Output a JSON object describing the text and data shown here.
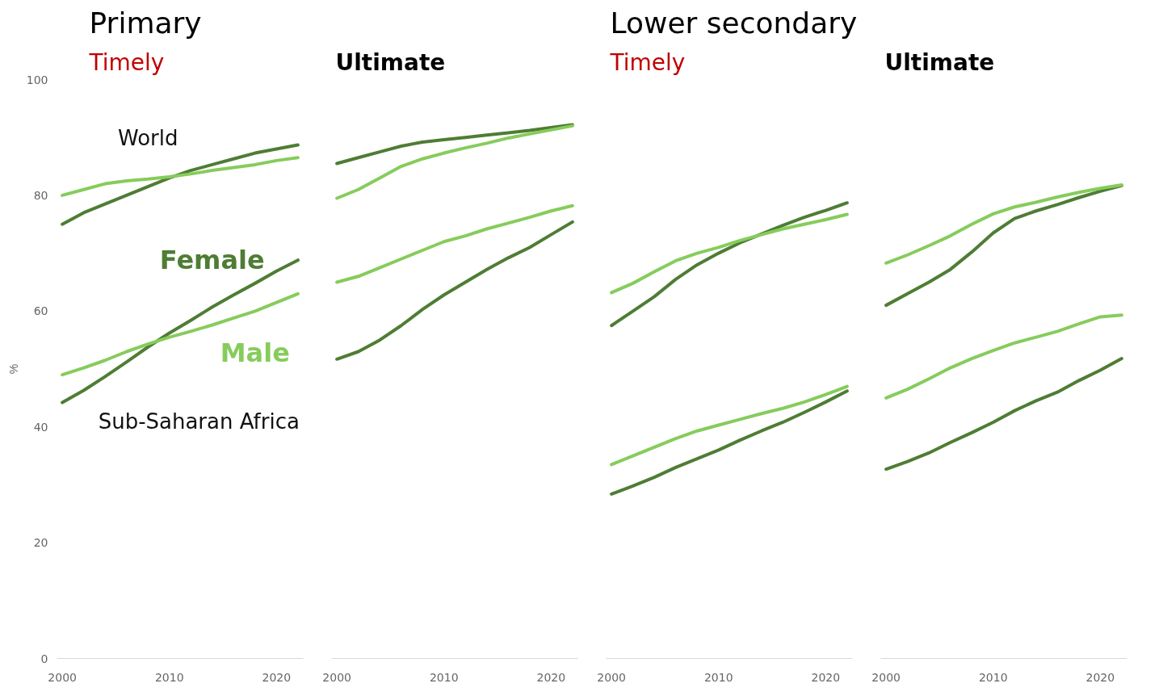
{
  "chart_data": [
    {
      "type": "line",
      "title": "Primary",
      "subtitle": "Timely",
      "ylabel": "%",
      "x": [
        2000,
        2002,
        2004,
        2006,
        2008,
        2010,
        2012,
        2014,
        2016,
        2018,
        2020,
        2022
      ],
      "xlim": [
        1999.5,
        2022.5
      ],
      "xticks": [
        2000,
        2010,
        2020
      ],
      "ylim": [
        0,
        100
      ],
      "yticks": [
        0,
        20,
        40,
        60,
        80,
        100
      ],
      "series": [
        {
          "color": "#4e7d34",
          "values": [
            75,
            77,
            78.5,
            80,
            81.5,
            83,
            84.3,
            85.3,
            86.3,
            87.3,
            88,
            88.7
          ]
        },
        {
          "color": "#86cc5c",
          "values": [
            80,
            81,
            82,
            82.5,
            82.8,
            83.2,
            83.7,
            84.3,
            84.8,
            85.3,
            86,
            86.5
          ]
        },
        {
          "name": "Female",
          "color": "#4e7d34",
          "values": [
            44.2,
            46.3,
            48.7,
            51.2,
            53.8,
            56.2,
            58.4,
            60.7,
            62.8,
            64.8,
            66.9,
            68.8
          ]
        },
        {
          "name": "Male",
          "color": "#86cc5c",
          "values": [
            49,
            50.2,
            51.5,
            53,
            54.3,
            55.5,
            56.5,
            57.6,
            58.8,
            60,
            61.5,
            63
          ]
        }
      ],
      "annotations": [
        "World",
        "Sub-Saharan Africa"
      ]
    },
    {
      "type": "line",
      "subtitle": "Ultimate",
      "tick_labels": "x",
      "x": [
        2000,
        2002,
        2004,
        2006,
        2008,
        2010,
        2012,
        2014,
        2016,
        2018,
        2020,
        2022
      ],
      "xlim": [
        1999.5,
        2022.5
      ],
      "xticks": [
        2000,
        2010,
        2020
      ],
      "ylim": [
        0,
        100
      ],
      "series": [
        {
          "color": "#4e7d34",
          "values": [
            85.5,
            86.5,
            87.5,
            88.5,
            89.2,
            89.6,
            90,
            90.4,
            90.8,
            91.2,
            91.7,
            92.2
          ]
        },
        {
          "color": "#86cc5c",
          "values": [
            79.5,
            81,
            83,
            85,
            86.3,
            87.3,
            88.2,
            89,
            89.9,
            90.6,
            91.3,
            92
          ]
        },
        {
          "color": "#4e7d34",
          "values": [
            51.7,
            53,
            55,
            57.5,
            60.3,
            62.8,
            65,
            67.2,
            69.2,
            71,
            73.2,
            75.4
          ]
        },
        {
          "color": "#86cc5c",
          "values": [
            65,
            66,
            67.5,
            69,
            70.5,
            72,
            73,
            74.2,
            75.2,
            76.2,
            77.3,
            78.2
          ]
        }
      ]
    },
    {
      "type": "line",
      "title": "Lower secondary",
      "subtitle": "Timely",
      "tick_labels": "x",
      "x": [
        2000,
        2002,
        2004,
        2006,
        2008,
        2010,
        2012,
        2014,
        2016,
        2018,
        2020,
        2022
      ],
      "xlim": [
        1999.5,
        2022.5
      ],
      "xticks": [
        2000,
        2010,
        2020
      ],
      "ylim": [
        0,
        100
      ],
      "series": [
        {
          "color": "#4e7d34",
          "values": [
            57.5,
            60,
            62.5,
            65.5,
            68,
            70,
            71.8,
            73.3,
            74.8,
            76.2,
            77.4,
            78.7
          ]
        },
        {
          "color": "#86cc5c",
          "values": [
            63.2,
            64.8,
            66.8,
            68.7,
            70,
            71,
            72.2,
            73.2,
            74.2,
            75,
            75.8,
            76.7
          ]
        },
        {
          "color": "#4e7d34",
          "values": [
            28.4,
            29.8,
            31.3,
            33,
            34.5,
            36,
            37.7,
            39.3,
            40.8,
            42.5,
            44.3,
            46.2
          ]
        },
        {
          "color": "#86cc5c",
          "values": [
            33.5,
            35,
            36.5,
            38,
            39.3,
            40.3,
            41.3,
            42.3,
            43.2,
            44.3,
            45.6,
            47
          ]
        }
      ]
    },
    {
      "type": "line",
      "subtitle": "Ultimate",
      "tick_labels": "x",
      "x": [
        2000,
        2002,
        2004,
        2006,
        2008,
        2010,
        2012,
        2014,
        2016,
        2018,
        2020,
        2022
      ],
      "xlim": [
        1999.5,
        2022.5
      ],
      "xticks": [
        2000,
        2010,
        2020
      ],
      "ylim": [
        0,
        100
      ],
      "series": [
        {
          "color": "#4e7d34",
          "values": [
            61,
            63,
            65,
            67.2,
            70.2,
            73.5,
            76,
            77.3,
            78.4,
            79.6,
            80.7,
            81.7
          ]
        },
        {
          "color": "#86cc5c",
          "values": [
            68.3,
            69.7,
            71.3,
            73,
            75,
            76.8,
            78,
            78.8,
            79.7,
            80.5,
            81.2,
            81.8
          ]
        },
        {
          "color": "#4e7d34",
          "values": [
            32.7,
            34,
            35.5,
            37.3,
            39,
            40.8,
            42.8,
            44.5,
            46,
            48,
            49.8,
            51.8
          ]
        },
        {
          "color": "#86cc5c",
          "values": [
            45,
            46.5,
            48.3,
            50.2,
            51.8,
            53.2,
            54.5,
            55.5,
            56.5,
            57.8,
            59,
            59.3
          ]
        }
      ]
    }
  ]
}
